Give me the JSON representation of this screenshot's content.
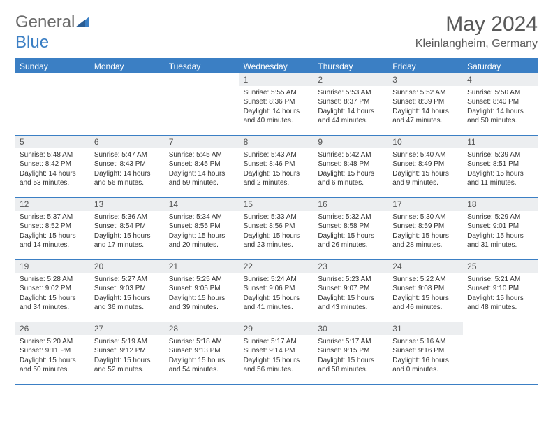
{
  "brand": {
    "part1": "General",
    "part2": "Blue"
  },
  "title": "May 2024",
  "location": "Kleinlangheim, Germany",
  "day_names": [
    "Sunday",
    "Monday",
    "Tuesday",
    "Wednesday",
    "Thursday",
    "Friday",
    "Saturday"
  ],
  "colors": {
    "accent": "#3b7fc4",
    "header_gray": "#eceef0"
  },
  "weeks": [
    [
      null,
      null,
      null,
      {
        "n": "1",
        "sunrise": "5:55 AM",
        "sunset": "8:36 PM",
        "daylight": "14 hours and 40 minutes."
      },
      {
        "n": "2",
        "sunrise": "5:53 AM",
        "sunset": "8:37 PM",
        "daylight": "14 hours and 44 minutes."
      },
      {
        "n": "3",
        "sunrise": "5:52 AM",
        "sunset": "8:39 PM",
        "daylight": "14 hours and 47 minutes."
      },
      {
        "n": "4",
        "sunrise": "5:50 AM",
        "sunset": "8:40 PM",
        "daylight": "14 hours and 50 minutes."
      }
    ],
    [
      {
        "n": "5",
        "sunrise": "5:48 AM",
        "sunset": "8:42 PM",
        "daylight": "14 hours and 53 minutes."
      },
      {
        "n": "6",
        "sunrise": "5:47 AM",
        "sunset": "8:43 PM",
        "daylight": "14 hours and 56 minutes."
      },
      {
        "n": "7",
        "sunrise": "5:45 AM",
        "sunset": "8:45 PM",
        "daylight": "14 hours and 59 minutes."
      },
      {
        "n": "8",
        "sunrise": "5:43 AM",
        "sunset": "8:46 PM",
        "daylight": "15 hours and 2 minutes."
      },
      {
        "n": "9",
        "sunrise": "5:42 AM",
        "sunset": "8:48 PM",
        "daylight": "15 hours and 6 minutes."
      },
      {
        "n": "10",
        "sunrise": "5:40 AM",
        "sunset": "8:49 PM",
        "daylight": "15 hours and 9 minutes."
      },
      {
        "n": "11",
        "sunrise": "5:39 AM",
        "sunset": "8:51 PM",
        "daylight": "15 hours and 11 minutes."
      }
    ],
    [
      {
        "n": "12",
        "sunrise": "5:37 AM",
        "sunset": "8:52 PM",
        "daylight": "15 hours and 14 minutes."
      },
      {
        "n": "13",
        "sunrise": "5:36 AM",
        "sunset": "8:54 PM",
        "daylight": "15 hours and 17 minutes."
      },
      {
        "n": "14",
        "sunrise": "5:34 AM",
        "sunset": "8:55 PM",
        "daylight": "15 hours and 20 minutes."
      },
      {
        "n": "15",
        "sunrise": "5:33 AM",
        "sunset": "8:56 PM",
        "daylight": "15 hours and 23 minutes."
      },
      {
        "n": "16",
        "sunrise": "5:32 AM",
        "sunset": "8:58 PM",
        "daylight": "15 hours and 26 minutes."
      },
      {
        "n": "17",
        "sunrise": "5:30 AM",
        "sunset": "8:59 PM",
        "daylight": "15 hours and 28 minutes."
      },
      {
        "n": "18",
        "sunrise": "5:29 AM",
        "sunset": "9:01 PM",
        "daylight": "15 hours and 31 minutes."
      }
    ],
    [
      {
        "n": "19",
        "sunrise": "5:28 AM",
        "sunset": "9:02 PM",
        "daylight": "15 hours and 34 minutes."
      },
      {
        "n": "20",
        "sunrise": "5:27 AM",
        "sunset": "9:03 PM",
        "daylight": "15 hours and 36 minutes."
      },
      {
        "n": "21",
        "sunrise": "5:25 AM",
        "sunset": "9:05 PM",
        "daylight": "15 hours and 39 minutes."
      },
      {
        "n": "22",
        "sunrise": "5:24 AM",
        "sunset": "9:06 PM",
        "daylight": "15 hours and 41 minutes."
      },
      {
        "n": "23",
        "sunrise": "5:23 AM",
        "sunset": "9:07 PM",
        "daylight": "15 hours and 43 minutes."
      },
      {
        "n": "24",
        "sunrise": "5:22 AM",
        "sunset": "9:08 PM",
        "daylight": "15 hours and 46 minutes."
      },
      {
        "n": "25",
        "sunrise": "5:21 AM",
        "sunset": "9:10 PM",
        "daylight": "15 hours and 48 minutes."
      }
    ],
    [
      {
        "n": "26",
        "sunrise": "5:20 AM",
        "sunset": "9:11 PM",
        "daylight": "15 hours and 50 minutes."
      },
      {
        "n": "27",
        "sunrise": "5:19 AM",
        "sunset": "9:12 PM",
        "daylight": "15 hours and 52 minutes."
      },
      {
        "n": "28",
        "sunrise": "5:18 AM",
        "sunset": "9:13 PM",
        "daylight": "15 hours and 54 minutes."
      },
      {
        "n": "29",
        "sunrise": "5:17 AM",
        "sunset": "9:14 PM",
        "daylight": "15 hours and 56 minutes."
      },
      {
        "n": "30",
        "sunrise": "5:17 AM",
        "sunset": "9:15 PM",
        "daylight": "15 hours and 58 minutes."
      },
      {
        "n": "31",
        "sunrise": "5:16 AM",
        "sunset": "9:16 PM",
        "daylight": "16 hours and 0 minutes."
      },
      null
    ]
  ],
  "labels": {
    "sunrise": "Sunrise:",
    "sunset": "Sunset:",
    "daylight": "Daylight:"
  }
}
